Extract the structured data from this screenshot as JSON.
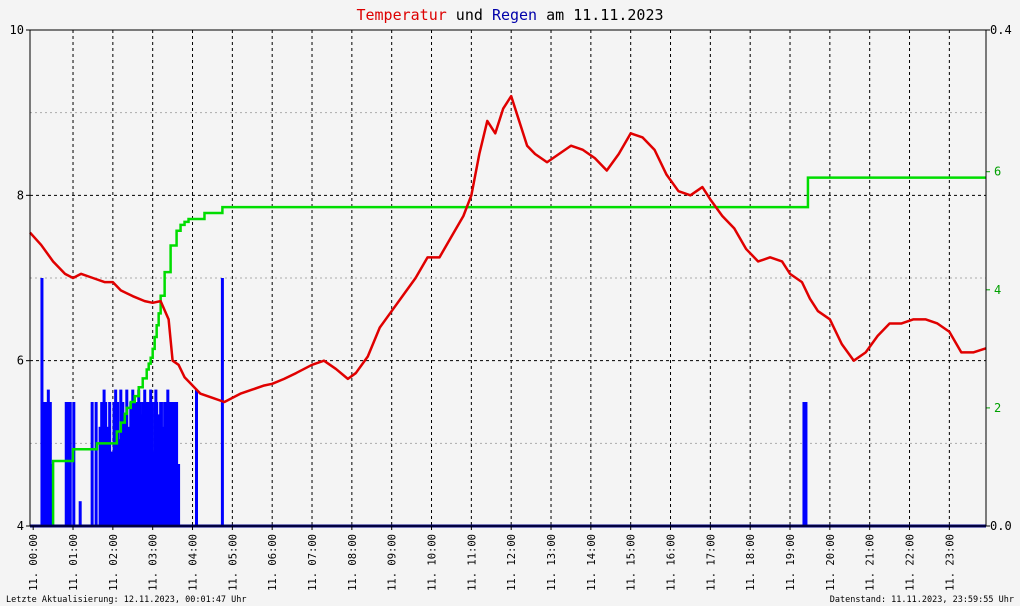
{
  "colors": {
    "background": "#f4f4f4",
    "temperature": "#e00000",
    "rain_bars": "#0000ff",
    "rain_sum": "#00dd00",
    "right_axis": "#00a000",
    "title_red": "#dd0000",
    "title_blue": "#0000aa",
    "grid": "#000000",
    "frame": "#000000",
    "baseline": "#000080"
  },
  "chart_data": {
    "type": "line",
    "title_parts": [
      {
        "text": "Temperatur",
        "role": "temperature"
      },
      {
        "text": " und ",
        "role": "plain"
      },
      {
        "text": "Regen",
        "role": "rain"
      },
      {
        "text": " am 11.11.2023",
        "role": "plain"
      }
    ],
    "x_unit": "hours since 11.11.2023 00:00",
    "xlim": [
      -0.08,
      23.92
    ],
    "x_tick_labels": [
      {
        "x": 0,
        "label": "11. 00:00"
      },
      {
        "x": 1,
        "label": "11. 01:00"
      },
      {
        "x": 2,
        "label": "11. 02:00"
      },
      {
        "x": 3,
        "label": "11. 03:00"
      },
      {
        "x": 4,
        "label": "11. 04:00"
      },
      {
        "x": 5,
        "label": "11. 05:00"
      },
      {
        "x": 6,
        "label": "11. 06:00"
      },
      {
        "x": 7,
        "label": "11. 07:00"
      },
      {
        "x": 8,
        "label": "11. 08:00"
      },
      {
        "x": 9,
        "label": "11. 09:00"
      },
      {
        "x": 10,
        "label": "11. 10:00"
      },
      {
        "x": 11,
        "label": "11. 11:00"
      },
      {
        "x": 12,
        "label": "11. 12:00"
      },
      {
        "x": 13,
        "label": "11. 13:00"
      },
      {
        "x": 14,
        "label": "11. 14:00"
      },
      {
        "x": 15,
        "label": "11. 15:00"
      },
      {
        "x": 16,
        "label": "11. 16:00"
      },
      {
        "x": 17,
        "label": "11. 17:00"
      },
      {
        "x": 18,
        "label": "11. 18:00"
      },
      {
        "x": 19,
        "label": "11. 19:00"
      },
      {
        "x": 20,
        "label": "11. 20:00"
      },
      {
        "x": 21,
        "label": "11. 21:00"
      },
      {
        "x": 22,
        "label": "11. 22:00"
      },
      {
        "x": 23,
        "label": "11. 23:00"
      }
    ],
    "y_left": {
      "lim": [
        4,
        10
      ],
      "ticks": [
        "4",
        "6",
        "8",
        "10"
      ],
      "minor_grid": [
        5,
        7,
        9
      ]
    },
    "y_right_outer": {
      "lim": [
        0,
        0.4
      ],
      "ticks": [
        {
          "v": 0,
          "label": "0.0"
        },
        {
          "v": 0.4,
          "label": "0.4"
        }
      ]
    },
    "y_right_inner": {
      "lim": [
        0,
        8.4
      ],
      "ticks": [
        "2",
        "4",
        "6"
      ]
    },
    "grid": true,
    "series": [
      {
        "kind": "temperature",
        "axis": "left",
        "x": [
          -0.08,
          0.2,
          0.5,
          0.8,
          1.0,
          1.2,
          1.5,
          1.8,
          2.0,
          2.2,
          2.5,
          2.8,
          3.0,
          3.2,
          3.4,
          3.5,
          3.65,
          3.8,
          4.0,
          4.2,
          4.5,
          4.8,
          5.0,
          5.2,
          5.5,
          5.8,
          6.0,
          6.3,
          6.6,
          7.0,
          7.3,
          7.6,
          7.9,
          8.1,
          8.4,
          8.7,
          9.0,
          9.3,
          9.6,
          9.9,
          10.2,
          10.5,
          10.8,
          11.0,
          11.2,
          11.4,
          11.6,
          11.8,
          12.0,
          12.2,
          12.4,
          12.6,
          12.9,
          13.2,
          13.5,
          13.8,
          14.1,
          14.4,
          14.7,
          15.0,
          15.3,
          15.6,
          15.9,
          16.2,
          16.5,
          16.8,
          17.0,
          17.3,
          17.6,
          17.9,
          18.2,
          18.5,
          18.8,
          19.0,
          19.3,
          19.5,
          19.7,
          20.0,
          20.3,
          20.6,
          20.9,
          21.2,
          21.5,
          21.8,
          22.1,
          22.4,
          22.7,
          23.0,
          23.3,
          23.6,
          23.92
        ],
        "values": [
          7.55,
          7.4,
          7.2,
          7.05,
          7.0,
          7.05,
          7.0,
          6.95,
          6.95,
          6.85,
          6.78,
          6.72,
          6.7,
          6.72,
          6.5,
          6.0,
          5.95,
          5.8,
          5.7,
          5.6,
          5.55,
          5.5,
          5.55,
          5.6,
          5.65,
          5.7,
          5.72,
          5.78,
          5.85,
          5.95,
          6.0,
          5.9,
          5.78,
          5.85,
          6.05,
          6.4,
          6.6,
          6.8,
          7.0,
          7.25,
          7.25,
          7.5,
          7.75,
          8.0,
          8.5,
          8.9,
          8.75,
          9.05,
          9.2,
          8.9,
          8.6,
          8.5,
          8.4,
          8.5,
          8.6,
          8.55,
          8.45,
          8.3,
          8.5,
          8.75,
          8.7,
          8.55,
          8.25,
          8.05,
          8.0,
          8.1,
          7.95,
          7.75,
          7.6,
          7.35,
          7.2,
          7.25,
          7.2,
          7.05,
          6.95,
          6.75,
          6.6,
          6.5,
          6.2,
          6.0,
          6.1,
          6.3,
          6.45,
          6.45,
          6.5,
          6.5,
          6.45,
          6.35,
          6.1,
          6.1,
          6.15
        ]
      },
      {
        "kind": "rain_sum",
        "axis": "right_inner",
        "step": true,
        "x": [
          -0.08,
          0.3,
          0.5,
          0.6,
          0.9,
          1.0,
          1.2,
          1.5,
          1.6,
          1.9,
          2.1,
          2.2,
          2.3,
          2.35,
          2.45,
          2.55,
          2.65,
          2.75,
          2.85,
          2.9,
          2.95,
          3.0,
          3.05,
          3.1,
          3.15,
          3.2,
          3.3,
          3.45,
          3.6,
          3.7,
          3.8,
          3.9,
          4.0,
          4.2,
          4.3,
          4.5,
          4.6,
          4.75,
          17.0,
          19.3,
          19.45,
          20.0,
          23.92
        ],
        "values": [
          0,
          0,
          1.1,
          1.1,
          1.1,
          1.3,
          1.3,
          1.3,
          1.4,
          1.4,
          1.6,
          1.75,
          1.9,
          2.0,
          2.1,
          2.2,
          2.35,
          2.5,
          2.65,
          2.75,
          2.85,
          3.0,
          3.2,
          3.4,
          3.6,
          3.9,
          4.3,
          4.75,
          5.0,
          5.1,
          5.15,
          5.2,
          5.2,
          5.2,
          5.3,
          5.3,
          5.3,
          5.4,
          5.4,
          5.4,
          5.9,
          5.9,
          5.9
        ]
      },
      {
        "kind": "rain_bars",
        "axis": "right_outer",
        "x": [
          0.22,
          0.28,
          0.32,
          0.38,
          0.43,
          0.48,
          0.83,
          0.88,
          0.93,
          1.02,
          1.18,
          1.48,
          1.58,
          1.68,
          1.72,
          1.75,
          1.78,
          1.82,
          1.88,
          1.92,
          1.98,
          2.03,
          2.07,
          2.12,
          2.17,
          2.2,
          2.25,
          2.3,
          2.35,
          2.4,
          2.45,
          2.5,
          2.55,
          2.6,
          2.65,
          2.68,
          2.7,
          2.75,
          2.8,
          2.83,
          2.85,
          2.88,
          2.9,
          2.95,
          2.98,
          3.0,
          3.05,
          3.08,
          3.1,
          3.15,
          3.2,
          3.22,
          3.25,
          3.28,
          3.3,
          3.35,
          3.38,
          3.4,
          3.45,
          3.5,
          3.55,
          3.6,
          3.65,
          4.1,
          4.75,
          19.35,
          19.4
        ],
        "values": [
          0.2,
          0.1,
          0.1,
          0.11,
          0.1,
          0.05,
          0.1,
          0.1,
          0.1,
          0.1,
          0.02,
          0.1,
          0.1,
          0.08,
          0.1,
          0.09,
          0.11,
          0.1,
          0.08,
          0.1,
          0.06,
          0.1,
          0.11,
          0.1,
          0.07,
          0.11,
          0.1,
          0.09,
          0.11,
          0.08,
          0.1,
          0.11,
          0.1,
          0.1,
          0.11,
          0.1,
          0.09,
          0.1,
          0.11,
          0.1,
          0.07,
          0.1,
          0.1,
          0.11,
          0.1,
          0.06,
          0.1,
          0.11,
          0.1,
          0.09,
          0.1,
          0.1,
          0.05,
          0.08,
          0.1,
          0.1,
          0.11,
          0.1,
          0.1,
          0.1,
          0.1,
          0.1,
          0.05,
          0.11,
          0.2,
          0.1,
          0.1
        ]
      }
    ]
  },
  "footer": {
    "left": "Letzte Aktualisierung: 12.11.2023, 00:01:47 Uhr",
    "right": "Datenstand: 11.11.2023, 23:59:55 Uhr"
  }
}
